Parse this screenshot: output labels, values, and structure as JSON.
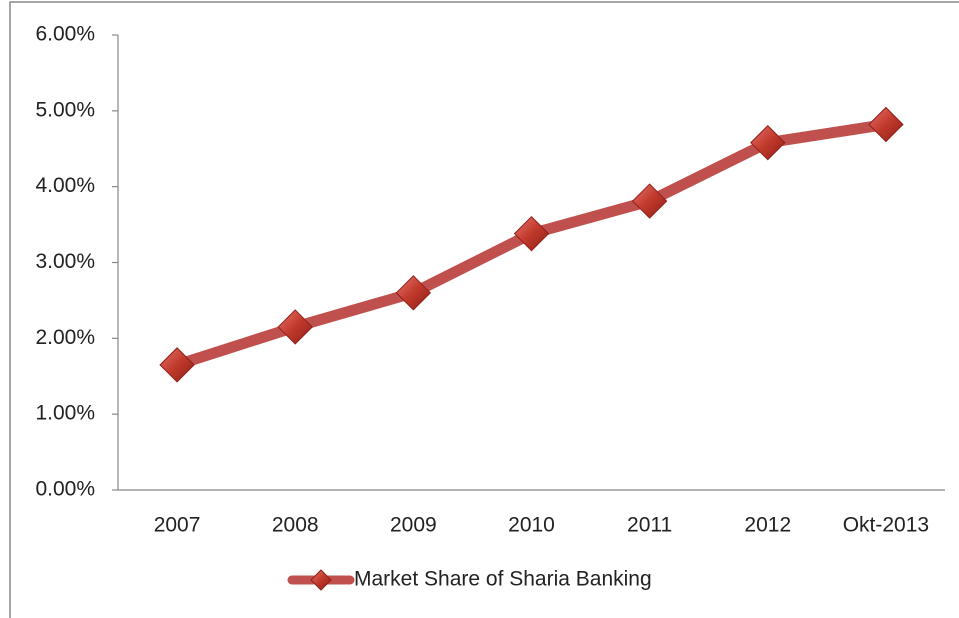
{
  "chart_data": {
    "type": "line",
    "categories": [
      "2007",
      "2008",
      "2009",
      "2010",
      "2011",
      "2012",
      "Okt-2013"
    ],
    "series": [
      {
        "name": "Market Share of Sharia Banking",
        "color": "#c0504d",
        "values": [
          1.65,
          2.15,
          2.6,
          3.38,
          3.81,
          4.58,
          4.82
        ]
      }
    ],
    "ylim": [
      0,
      6
    ],
    "yticks": [
      {
        "value": 0,
        "label": "0.00%"
      },
      {
        "value": 1,
        "label": "1.00%"
      },
      {
        "value": 2,
        "label": "2.00%"
      },
      {
        "value": 3,
        "label": "3.00%"
      },
      {
        "value": 4,
        "label": "4.00%"
      },
      {
        "value": 5,
        "label": "5.00%"
      },
      {
        "value": 6,
        "label": "6.00%"
      }
    ],
    "grid": false,
    "legend": "bottom"
  }
}
